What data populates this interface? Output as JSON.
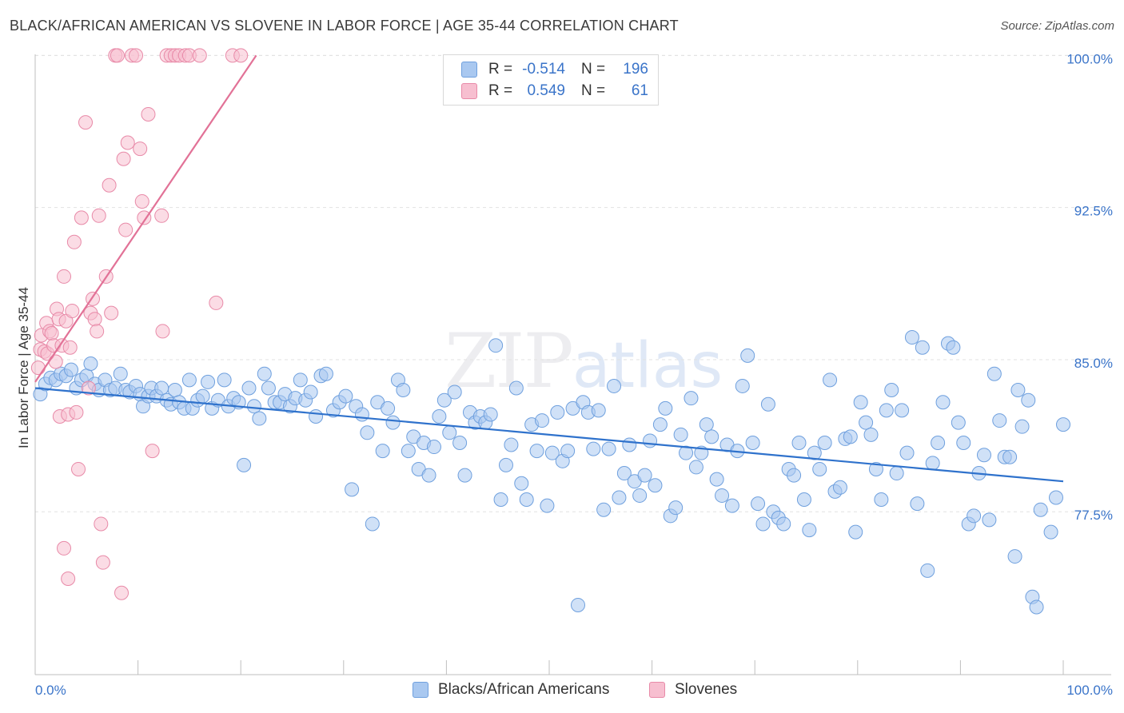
{
  "header": {
    "title": "BLACK/AFRICAN AMERICAN VS SLOVENE IN LABOR FORCE | AGE 35-44 CORRELATION CHART",
    "source": "Source: ZipAtlas.com"
  },
  "watermark": {
    "zip": "ZIP",
    "atlas": "atlas"
  },
  "legend": {
    "rows": [
      {
        "r_label": "R =",
        "r_value": "-0.514",
        "n_label": "N =",
        "n_value": "196",
        "color": "#a9c8f0",
        "border": "#6fa0de"
      },
      {
        "r_label": "R =",
        "r_value": "0.549",
        "n_label": "N =",
        "n_value": "61",
        "color": "#f7bfd0",
        "border": "#e88aa8"
      }
    ]
  },
  "bottom_legend": [
    {
      "label": "Blacks/African Americans",
      "color": "#a9c8f0",
      "border": "#6fa0de"
    },
    {
      "label": "Slovenes",
      "color": "#f7bfd0",
      "border": "#e88aa8"
    }
  ],
  "chart_data": {
    "type": "scatter",
    "title": "BLACK/AFRICAN AMERICAN VS SLOVENE IN LABOR FORCE | AGE 35-44 CORRELATION CHART",
    "xlabel": "",
    "ylabel": "In Labor Force | Age 35-44",
    "xlim": [
      0,
      100
    ],
    "ylim": [
      70.1,
      101.0
    ],
    "x_tick_labels": [
      "0.0%",
      "100.0%"
    ],
    "y_ticks": [
      77.5,
      85.0,
      92.5,
      100.0
    ],
    "y_tick_labels": [
      "77.5%",
      "85.0%",
      "92.5%",
      "100.0%"
    ],
    "grid": true,
    "series": [
      {
        "name": "Blacks/African Americans",
        "color": "#a9c8f0",
        "edge": "#6fa0de",
        "trend": {
          "x": [
            0,
            100
          ],
          "y": [
            83.6,
            79.0
          ],
          "color": "#2f72cc"
        },
        "points": [
          [
            0.5,
            83.3
          ],
          [
            1.0,
            83.8
          ],
          [
            1.5,
            84.1
          ],
          [
            2.0,
            84.0
          ],
          [
            2.5,
            84.3
          ],
          [
            3.0,
            84.2
          ],
          [
            3.5,
            84.5
          ],
          [
            4.0,
            83.6
          ],
          [
            4.5,
            84.0
          ],
          [
            5.0,
            84.2
          ],
          [
            5.4,
            84.8
          ],
          [
            5.8,
            83.8
          ],
          [
            6.2,
            83.5
          ],
          [
            6.8,
            84.0
          ],
          [
            7.3,
            83.5
          ],
          [
            7.8,
            83.6
          ],
          [
            8.3,
            84.3
          ],
          [
            8.8,
            83.5
          ],
          [
            9.2,
            83.4
          ],
          [
            9.8,
            83.7
          ],
          [
            10.2,
            83.3
          ],
          [
            10.5,
            82.7
          ],
          [
            11.0,
            83.2
          ],
          [
            11.3,
            83.6
          ],
          [
            11.8,
            83.2
          ],
          [
            12.3,
            83.6
          ],
          [
            12.8,
            83.0
          ],
          [
            13.2,
            82.8
          ],
          [
            13.6,
            83.5
          ],
          [
            14.0,
            82.9
          ],
          [
            14.5,
            82.6
          ],
          [
            15.0,
            84.0
          ],
          [
            15.3,
            82.6
          ],
          [
            15.8,
            83.0
          ],
          [
            16.3,
            83.2
          ],
          [
            16.8,
            83.9
          ],
          [
            17.2,
            82.6
          ],
          [
            17.8,
            83.0
          ],
          [
            18.4,
            84.0
          ],
          [
            18.8,
            82.7
          ],
          [
            19.3,
            83.1
          ],
          [
            19.8,
            82.9
          ],
          [
            20.3,
            79.8
          ],
          [
            20.8,
            83.6
          ],
          [
            21.3,
            82.7
          ],
          [
            21.8,
            82.1
          ],
          [
            22.3,
            84.3
          ],
          [
            22.7,
            83.6
          ],
          [
            23.3,
            82.9
          ],
          [
            23.8,
            82.9
          ],
          [
            24.3,
            83.3
          ],
          [
            24.8,
            82.7
          ],
          [
            25.3,
            83.1
          ],
          [
            25.8,
            84.0
          ],
          [
            26.3,
            83.0
          ],
          [
            26.8,
            83.4
          ],
          [
            27.3,
            82.2
          ],
          [
            27.8,
            84.2
          ],
          [
            28.3,
            84.3
          ],
          [
            29.0,
            82.5
          ],
          [
            29.6,
            82.9
          ],
          [
            30.2,
            83.2
          ],
          [
            30.8,
            78.6
          ],
          [
            31.2,
            82.7
          ],
          [
            31.8,
            82.3
          ],
          [
            32.3,
            81.4
          ],
          [
            32.8,
            76.9
          ],
          [
            33.3,
            82.9
          ],
          [
            33.8,
            80.5
          ],
          [
            34.3,
            82.6
          ],
          [
            34.8,
            81.9
          ],
          [
            35.3,
            84.0
          ],
          [
            35.8,
            83.5
          ],
          [
            36.3,
            80.5
          ],
          [
            36.8,
            81.2
          ],
          [
            37.3,
            79.6
          ],
          [
            37.8,
            80.9
          ],
          [
            38.3,
            79.3
          ],
          [
            38.8,
            80.7
          ],
          [
            39.3,
            82.2
          ],
          [
            39.8,
            83.0
          ],
          [
            40.3,
            81.4
          ],
          [
            40.8,
            83.4
          ],
          [
            41.3,
            80.9
          ],
          [
            41.8,
            79.3
          ],
          [
            42.3,
            82.4
          ],
          [
            42.8,
            81.9
          ],
          [
            43.3,
            82.2
          ],
          [
            43.8,
            81.9
          ],
          [
            44.3,
            82.3
          ],
          [
            44.8,
            85.7
          ],
          [
            45.3,
            78.1
          ],
          [
            45.8,
            79.8
          ],
          [
            46.3,
            80.8
          ],
          [
            46.8,
            83.6
          ],
          [
            47.3,
            78.9
          ],
          [
            47.8,
            78.1
          ],
          [
            48.3,
            81.8
          ],
          [
            48.8,
            80.5
          ],
          [
            49.3,
            82.0
          ],
          [
            49.8,
            77.8
          ],
          [
            50.3,
            80.4
          ],
          [
            50.8,
            82.4
          ],
          [
            51.3,
            80.0
          ],
          [
            51.8,
            80.5
          ],
          [
            52.3,
            82.6
          ],
          [
            52.8,
            72.9
          ],
          [
            53.3,
            82.9
          ],
          [
            53.8,
            82.4
          ],
          [
            54.3,
            80.6
          ],
          [
            54.8,
            82.5
          ],
          [
            55.3,
            77.6
          ],
          [
            55.8,
            80.6
          ],
          [
            56.3,
            83.7
          ],
          [
            56.8,
            78.2
          ],
          [
            57.3,
            79.4
          ],
          [
            57.8,
            80.8
          ],
          [
            58.3,
            79.0
          ],
          [
            58.8,
            78.3
          ],
          [
            59.3,
            79.3
          ],
          [
            59.8,
            81.0
          ],
          [
            60.3,
            78.8
          ],
          [
            60.8,
            81.8
          ],
          [
            61.3,
            82.6
          ],
          [
            61.8,
            77.3
          ],
          [
            62.3,
            77.7
          ],
          [
            62.8,
            81.3
          ],
          [
            63.3,
            80.4
          ],
          [
            63.8,
            83.1
          ],
          [
            64.3,
            79.7
          ],
          [
            64.8,
            80.4
          ],
          [
            65.3,
            81.8
          ],
          [
            65.8,
            81.2
          ],
          [
            66.3,
            79.1
          ],
          [
            66.8,
            78.3
          ],
          [
            67.3,
            80.8
          ],
          [
            67.8,
            77.8
          ],
          [
            68.3,
            80.5
          ],
          [
            68.8,
            83.7
          ],
          [
            69.3,
            85.2
          ],
          [
            69.8,
            80.9
          ],
          [
            70.3,
            77.9
          ],
          [
            70.8,
            76.9
          ],
          [
            71.3,
            82.8
          ],
          [
            71.8,
            77.5
          ],
          [
            72.3,
            77.2
          ],
          [
            72.8,
            76.9
          ],
          [
            73.3,
            79.6
          ],
          [
            73.8,
            79.3
          ],
          [
            74.3,
            80.9
          ],
          [
            74.8,
            78.1
          ],
          [
            75.3,
            76.6
          ],
          [
            75.8,
            80.4
          ],
          [
            76.3,
            79.6
          ],
          [
            76.8,
            80.9
          ],
          [
            77.3,
            84.0
          ],
          [
            77.8,
            78.5
          ],
          [
            78.3,
            78.7
          ],
          [
            78.8,
            81.1
          ],
          [
            79.3,
            81.2
          ],
          [
            79.8,
            76.5
          ],
          [
            80.3,
            82.9
          ],
          [
            80.8,
            81.9
          ],
          [
            81.3,
            81.3
          ],
          [
            81.8,
            79.6
          ],
          [
            82.3,
            78.1
          ],
          [
            82.8,
            82.5
          ],
          [
            83.3,
            83.5
          ],
          [
            83.8,
            79.4
          ],
          [
            84.3,
            82.5
          ],
          [
            84.8,
            80.4
          ],
          [
            85.3,
            86.1
          ],
          [
            85.8,
            77.9
          ],
          [
            86.3,
            85.6
          ],
          [
            86.8,
            74.6
          ],
          [
            87.3,
            79.9
          ],
          [
            87.8,
            80.9
          ],
          [
            88.3,
            82.9
          ],
          [
            88.8,
            85.8
          ],
          [
            89.3,
            85.6
          ],
          [
            89.8,
            81.9
          ],
          [
            90.3,
            80.9
          ],
          [
            90.8,
            76.9
          ],
          [
            91.3,
            77.3
          ],
          [
            91.8,
            79.4
          ],
          [
            92.3,
            80.3
          ],
          [
            92.8,
            77.1
          ],
          [
            93.3,
            84.3
          ],
          [
            93.8,
            82.0
          ],
          [
            94.3,
            80.2
          ],
          [
            94.8,
            80.2
          ],
          [
            95.3,
            75.3
          ],
          [
            95.6,
            83.5
          ],
          [
            96.0,
            81.7
          ],
          [
            96.6,
            83.0
          ],
          [
            97.0,
            73.3
          ],
          [
            97.4,
            72.8
          ],
          [
            97.8,
            77.6
          ],
          [
            98.8,
            76.5
          ],
          [
            99.3,
            78.2
          ],
          [
            100.0,
            81.8
          ]
        ]
      },
      {
        "name": "Slovenes",
        "color": "#f7bfd0",
        "edge": "#e88aa8",
        "trend": {
          "x": [
            0,
            21.5
          ],
          "y": [
            83.9,
            100.0
          ],
          "color": "#e27297"
        },
        "points": [
          [
            0.3,
            84.6
          ],
          [
            0.5,
            85.5
          ],
          [
            0.6,
            86.2
          ],
          [
            0.9,
            85.4
          ],
          [
            1.1,
            86.8
          ],
          [
            1.2,
            85.3
          ],
          [
            1.4,
            86.4
          ],
          [
            1.6,
            86.3
          ],
          [
            1.8,
            85.7
          ],
          [
            2.0,
            84.9
          ],
          [
            2.1,
            87.5
          ],
          [
            2.3,
            87.0
          ],
          [
            2.4,
            82.2
          ],
          [
            2.6,
            85.7
          ],
          [
            2.8,
            89.1
          ],
          [
            3.0,
            86.9
          ],
          [
            3.2,
            82.3
          ],
          [
            3.4,
            85.6
          ],
          [
            3.6,
            87.4
          ],
          [
            3.8,
            90.8
          ],
          [
            4.0,
            82.4
          ],
          [
            4.2,
            79.6
          ],
          [
            4.5,
            92.0
          ],
          [
            4.9,
            96.7
          ],
          [
            5.2,
            83.6
          ],
          [
            5.4,
            87.3
          ],
          [
            5.6,
            88.0
          ],
          [
            5.8,
            87.0
          ],
          [
            6.0,
            86.4
          ],
          [
            6.2,
            92.1
          ],
          [
            6.4,
            76.9
          ],
          [
            6.6,
            75.0
          ],
          [
            6.9,
            89.1
          ],
          [
            7.2,
            93.6
          ],
          [
            7.4,
            87.3
          ],
          [
            7.8,
            100.0
          ],
          [
            8.0,
            100.0
          ],
          [
            8.4,
            73.5
          ],
          [
            8.6,
            94.9
          ],
          [
            8.8,
            91.4
          ],
          [
            9.0,
            95.7
          ],
          [
            9.4,
            100.0
          ],
          [
            9.8,
            100.0
          ],
          [
            10.2,
            95.4
          ],
          [
            10.4,
            92.8
          ],
          [
            10.6,
            92.0
          ],
          [
            11.0,
            97.1
          ],
          [
            11.4,
            80.5
          ],
          [
            12.3,
            92.1
          ],
          [
            12.4,
            86.4
          ],
          [
            12.8,
            100.0
          ],
          [
            13.2,
            100.0
          ],
          [
            13.6,
            100.0
          ],
          [
            14.0,
            100.0
          ],
          [
            14.6,
            100.0
          ],
          [
            15.0,
            100.0
          ],
          [
            16.0,
            100.0
          ],
          [
            17.6,
            87.8
          ],
          [
            19.2,
            100.0
          ],
          [
            20.0,
            100.0
          ],
          [
            2.8,
            75.7
          ],
          [
            3.2,
            74.2
          ]
        ]
      }
    ]
  }
}
